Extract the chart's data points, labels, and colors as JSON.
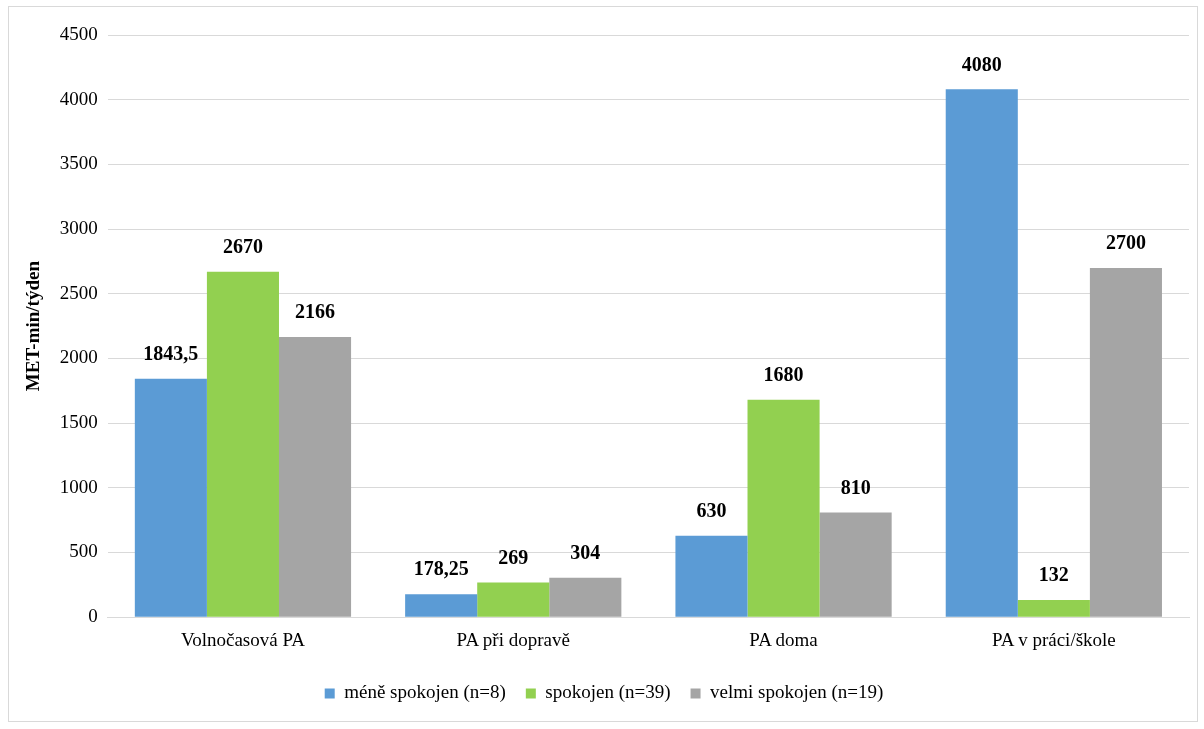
{
  "chart_data": {
    "type": "bar",
    "ylabel": "MET-min/týden",
    "categories": [
      "Volnočasová PA",
      "PA při dopravě",
      "PA doma",
      "PA v práci/škole"
    ],
    "series": [
      {
        "name": "méně spokojen (n=8)",
        "color": "#5b9bd5",
        "values": [
          1843.5,
          178.25,
          630,
          4080
        ],
        "value_labels": [
          "1843,5",
          "178,25",
          "630",
          "4080"
        ]
      },
      {
        "name": "spokojen (n=39)",
        "color": "#92d050",
        "values": [
          2670,
          269,
          1680,
          132
        ],
        "value_labels": [
          "2670",
          "269",
          "1680",
          "132"
        ]
      },
      {
        "name": "velmi spokojen (n=19)",
        "color": "#a5a5a5",
        "values": [
          2166,
          304,
          810,
          2700
        ],
        "value_labels": [
          "2166",
          "304",
          "810",
          "2700"
        ]
      }
    ],
    "ylim": [
      0,
      4500
    ],
    "yticks": [
      0,
      500,
      1000,
      1500,
      2000,
      2500,
      3000,
      3500,
      4000,
      4500
    ],
    "grid": "y",
    "legend": "bottom"
  }
}
